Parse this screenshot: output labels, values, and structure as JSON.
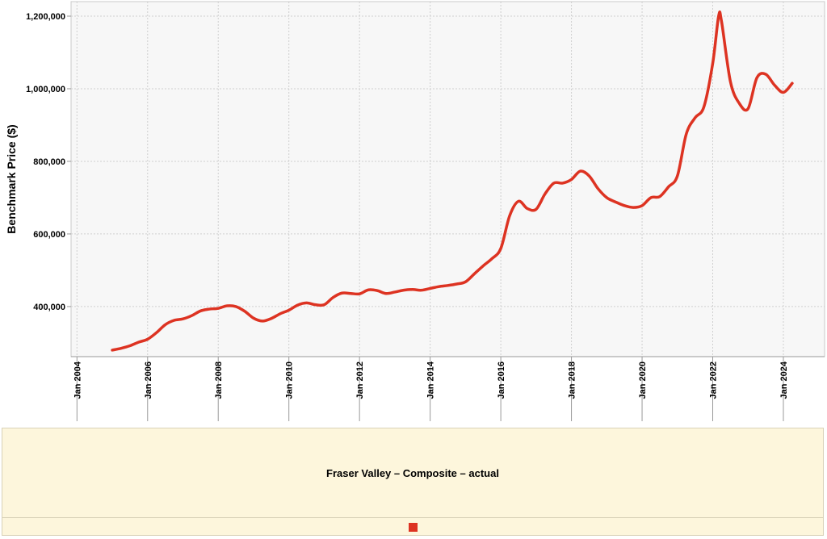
{
  "chart_data": {
    "type": "line",
    "ylabel": "Benchmark Price ($)",
    "xlabel": "",
    "y_ticks": [
      400000,
      600000,
      800000,
      1000000,
      1200000
    ],
    "y_tick_labels": [
      "400,000",
      "600,000",
      "800,000",
      "1,000,000",
      "1,200,000"
    ],
    "x_ticks": [
      "2004-01",
      "2006-01",
      "2008-01",
      "2010-01",
      "2012-01",
      "2014-01",
      "2016-01",
      "2018-01",
      "2020-01",
      "2022-01",
      "2024-01"
    ],
    "x_tick_labels": [
      "Jan 2004",
      "Jan 2006",
      "Jan 2008",
      "Jan 2010",
      "Jan 2012",
      "Jan 2014",
      "Jan 2016",
      "Jan 2018",
      "Jan 2020",
      "Jan 2022",
      "Jan 2024"
    ],
    "xlim": [
      "2003-11",
      "2025-03"
    ],
    "ylim": [
      262000,
      1240000
    ],
    "grid": true,
    "legend_position": "bottom",
    "series": [
      {
        "name": "Fraser Valley – Composite – actual",
        "color": "#dd3322",
        "x": [
          "2005-01",
          "2005-04",
          "2005-07",
          "2005-10",
          "2006-01",
          "2006-04",
          "2006-07",
          "2006-10",
          "2007-01",
          "2007-04",
          "2007-07",
          "2007-10",
          "2008-01",
          "2008-04",
          "2008-07",
          "2008-10",
          "2009-01",
          "2009-04",
          "2009-07",
          "2009-10",
          "2010-01",
          "2010-04",
          "2010-07",
          "2010-10",
          "2011-01",
          "2011-04",
          "2011-07",
          "2011-10",
          "2012-01",
          "2012-04",
          "2012-07",
          "2012-10",
          "2013-01",
          "2013-04",
          "2013-07",
          "2013-10",
          "2014-01",
          "2014-04",
          "2014-07",
          "2014-10",
          "2015-01",
          "2015-04",
          "2015-07",
          "2015-10",
          "2016-01",
          "2016-04",
          "2016-07",
          "2016-10",
          "2017-01",
          "2017-04",
          "2017-07",
          "2017-10",
          "2018-01",
          "2018-04",
          "2018-07",
          "2018-10",
          "2019-01",
          "2019-04",
          "2019-07",
          "2019-10",
          "2020-01",
          "2020-04",
          "2020-07",
          "2020-10",
          "2021-01",
          "2021-04",
          "2021-07",
          "2021-10",
          "2022-01",
          "2022-03",
          "2022-04",
          "2022-07",
          "2022-10",
          "2023-01",
          "2023-04",
          "2023-07",
          "2023-10",
          "2024-01",
          "2024-04"
        ],
        "y": [
          280000,
          285000,
          292000,
          302000,
          310000,
          328000,
          350000,
          362000,
          366000,
          375000,
          388000,
          393000,
          395000,
          402000,
          400000,
          387000,
          368000,
          360000,
          367000,
          380000,
          390000,
          404000,
          410000,
          405000,
          405000,
          425000,
          437000,
          436000,
          435000,
          446000,
          444000,
          436000,
          440000,
          445000,
          447000,
          445000,
          450000,
          455000,
          458000,
          462000,
          468000,
          490000,
          512000,
          532000,
          560000,
          650000,
          690000,
          670000,
          668000,
          710000,
          740000,
          740000,
          750000,
          773000,
          760000,
          725000,
          700000,
          688000,
          678000,
          673000,
          678000,
          700000,
          703000,
          730000,
          760000,
          875000,
          920000,
          950000,
          1070000,
          1200000,
          1185000,
          1020000,
          960000,
          945000,
          1030000,
          1040000,
          1010000,
          990000,
          1015000
        ]
      }
    ]
  },
  "legend": {
    "title": "Fraser Valley – Composite – actual",
    "swatch_color": "#dd3322"
  }
}
